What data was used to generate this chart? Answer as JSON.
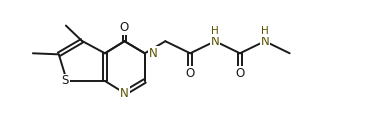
{
  "bg_color": "#ffffff",
  "line_color": "#1a1a1a",
  "heteroatom_color": "#1a1a1a",
  "n_color": "#5a5200",
  "s_color": "#1a1a1a",
  "o_color": "#1a1a1a",
  "line_width": 1.4,
  "font_size": 8.5,
  "figsize": [
    3.84,
    1.35
  ],
  "dpi": 100,
  "xlim": [
    0,
    10.8
  ],
  "ylim": [
    0.0,
    3.8
  ]
}
